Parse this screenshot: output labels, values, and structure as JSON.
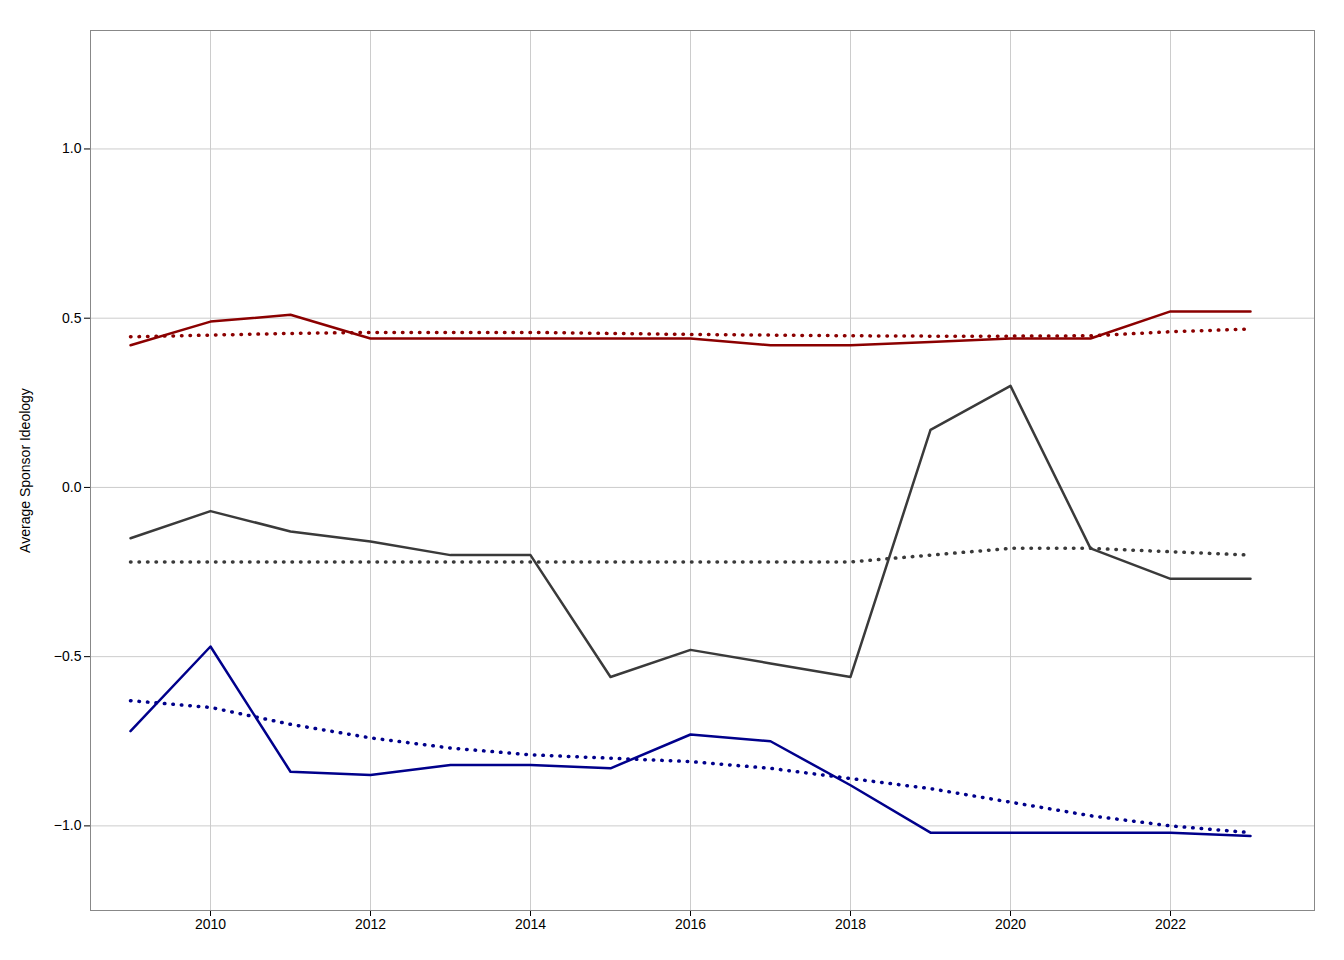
{
  "chart_data": {
    "type": "line",
    "ylabel": "Average Sponsor Ideology",
    "x": [
      2009,
      2010,
      2011,
      2012,
      2013,
      2014,
      2015,
      2016,
      2017,
      2018,
      2019,
      2020,
      2021,
      2022,
      2023
    ],
    "series": [
      {
        "color": "#8B0000",
        "line_style": "dotted",
        "values": [
          0.445,
          0.45,
          0.455,
          0.458,
          0.458,
          0.458,
          0.455,
          0.452,
          0.45,
          0.448,
          0.447,
          0.447,
          0.448,
          0.46,
          0.468
        ]
      },
      {
        "color": "#3a3a3a",
        "line_style": "dotted",
        "values": [
          -0.22,
          -0.22,
          -0.22,
          -0.22,
          -0.22,
          -0.22,
          -0.22,
          -0.22,
          -0.22,
          -0.22,
          -0.2,
          -0.18,
          -0.18,
          -0.19,
          -0.2
        ]
      },
      {
        "color": "#00008B",
        "line_style": "dotted",
        "values": [
          -0.63,
          -0.65,
          -0.7,
          -0.74,
          -0.77,
          -0.79,
          -0.8,
          -0.81,
          -0.83,
          -0.86,
          -0.89,
          -0.93,
          -0.97,
          -1.0,
          -1.02
        ]
      },
      {
        "color": "#8B0000",
        "line_style": "solid",
        "values": [
          0.42,
          0.49,
          0.51,
          0.44,
          0.44,
          0.44,
          0.44,
          0.44,
          0.42,
          0.42,
          0.43,
          0.44,
          0.44,
          0.52,
          0.52
        ]
      },
      {
        "color": "#3a3a3a",
        "line_style": "solid",
        "values": [
          -0.15,
          -0.07,
          -0.13,
          -0.16,
          -0.2,
          -0.2,
          -0.56,
          -0.48,
          -0.52,
          -0.56,
          0.17,
          0.3,
          -0.18,
          -0.27,
          -0.27
        ]
      },
      {
        "color": "#00008B",
        "line_style": "solid",
        "values": [
          -0.72,
          -0.47,
          -0.84,
          -0.85,
          -0.82,
          -0.82,
          -0.83,
          -0.73,
          -0.75,
          -0.88,
          -1.02,
          -1.02,
          -1.02,
          -1.02,
          -1.03
        ]
      }
    ],
    "xlim": [
      2008.5,
      2023.8
    ],
    "xticks": [
      2010,
      2012,
      2014,
      2016,
      2018,
      2020,
      2022
    ],
    "ylim": [
      -1.25,
      1.35
    ],
    "yticks": [
      {
        "value": -1.0,
        "label": "−1.0"
      },
      {
        "value": -0.5,
        "label": "−0.5"
      },
      {
        "value": 0.0,
        "label": "0.0"
      },
      {
        "value": 0.5,
        "label": "0.5"
      },
      {
        "value": 1.0,
        "label": "1.0"
      }
    ],
    "grid": true
  }
}
